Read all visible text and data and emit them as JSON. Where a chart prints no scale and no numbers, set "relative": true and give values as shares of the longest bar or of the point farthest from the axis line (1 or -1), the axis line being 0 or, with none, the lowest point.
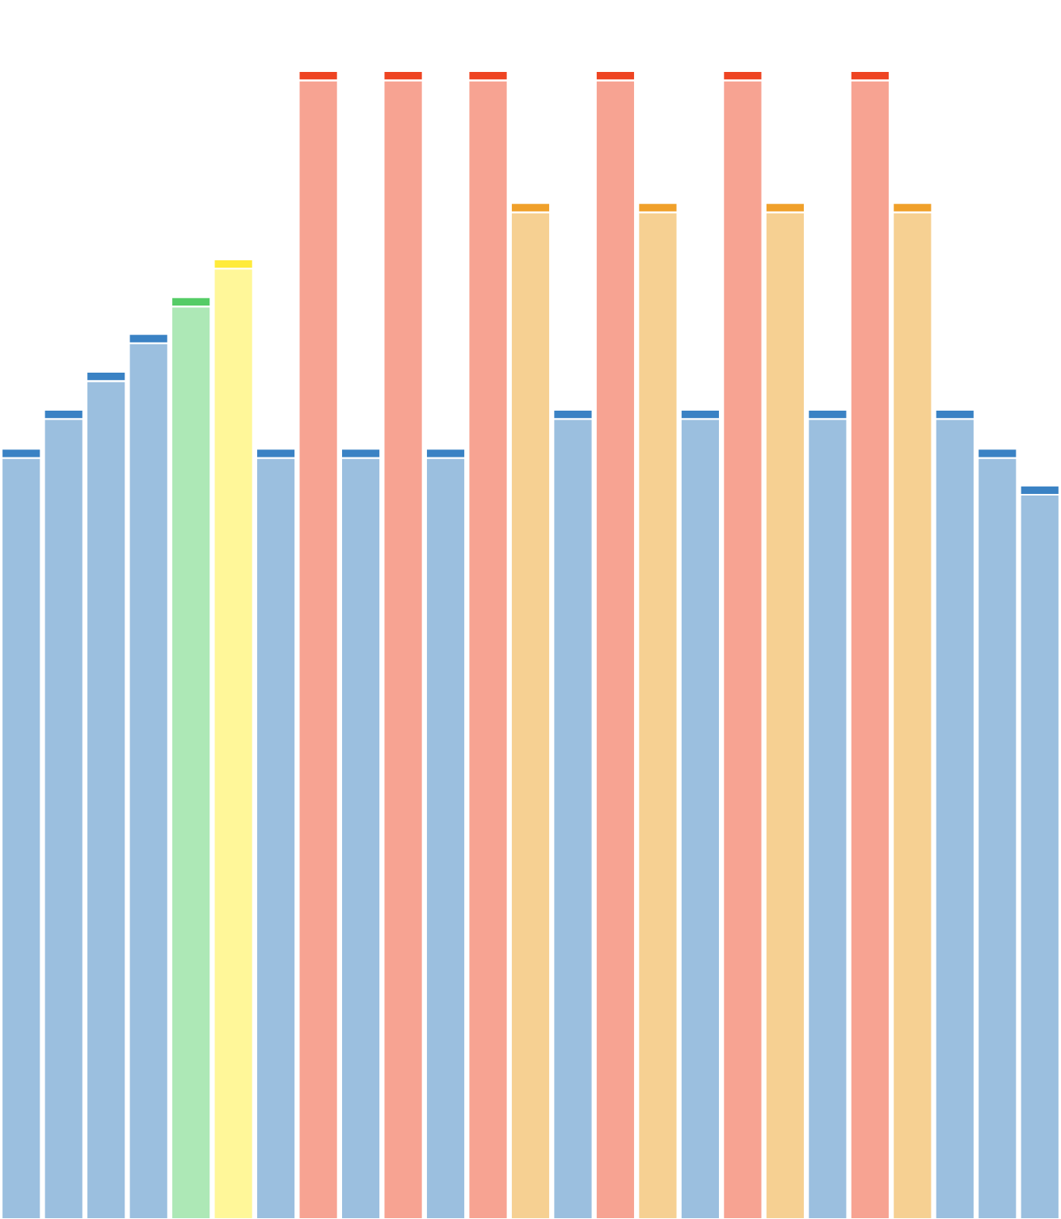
{
  "chart_data": {
    "type": "bar",
    "relative": true,
    "stacked": true,
    "categories": [
      null,
      null,
      null,
      null,
      null,
      null,
      null,
      null,
      null,
      null,
      null,
      null,
      null,
      null,
      null,
      null,
      null,
      null,
      null,
      null,
      null,
      null,
      null,
      null,
      null
    ],
    "series": [
      {
        "colors": [
          "#9bbfdf",
          "#9bbfdf",
          "#9bbfdf",
          "#9bbfdf",
          "#ade8b6",
          "#fff799",
          "#9bbfdf",
          "#f7a392",
          "#9bbfdf",
          "#f7a392",
          "#9bbfdf",
          "#f7a392",
          "#f6d092",
          "#9bbfdf",
          "#f7a392",
          "#f6d092",
          "#9bbfdf",
          "#f7a392",
          "#f6d092",
          "#9bbfdf",
          "#f7a392",
          "#f6d092",
          "#9bbfdf",
          "#9bbfdf",
          "#9bbfdf"
        ],
        "values": [
          0.663,
          0.697,
          0.73,
          0.763,
          0.795,
          0.828,
          0.663,
          0.992,
          0.663,
          0.992,
          0.663,
          0.992,
          0.877,
          0.697,
          0.992,
          0.877,
          0.697,
          0.992,
          0.877,
          0.697,
          0.992,
          0.877,
          0.697,
          0.663,
          0.631
        ]
      },
      {
        "colors": [
          "#3a82c4",
          "#3a82c4",
          "#3a82c4",
          "#3a82c4",
          "#55cc66",
          "#ffeb3b",
          "#3a82c4",
          "#ee4422",
          "#3a82c4",
          "#ee4422",
          "#3a82c4",
          "#ee4422",
          "#f0a02a",
          "#3a82c4",
          "#ee4422",
          "#f0a02a",
          "#3a82c4",
          "#ee4422",
          "#f0a02a",
          "#3a82c4",
          "#ee4422",
          "#f0a02a",
          "#3a82c4",
          "#3a82c4",
          "#3a82c4"
        ],
        "values": [
          0.008,
          0.008,
          0.008,
          0.008,
          0.008,
          0.008,
          0.008,
          0.008,
          0.008,
          0.008,
          0.008,
          0.008,
          0.008,
          0.008,
          0.008,
          0.008,
          0.008,
          0.008,
          0.008,
          0.008,
          0.008,
          0.008,
          0.008,
          0.008,
          0.008
        ]
      }
    ]
  }
}
